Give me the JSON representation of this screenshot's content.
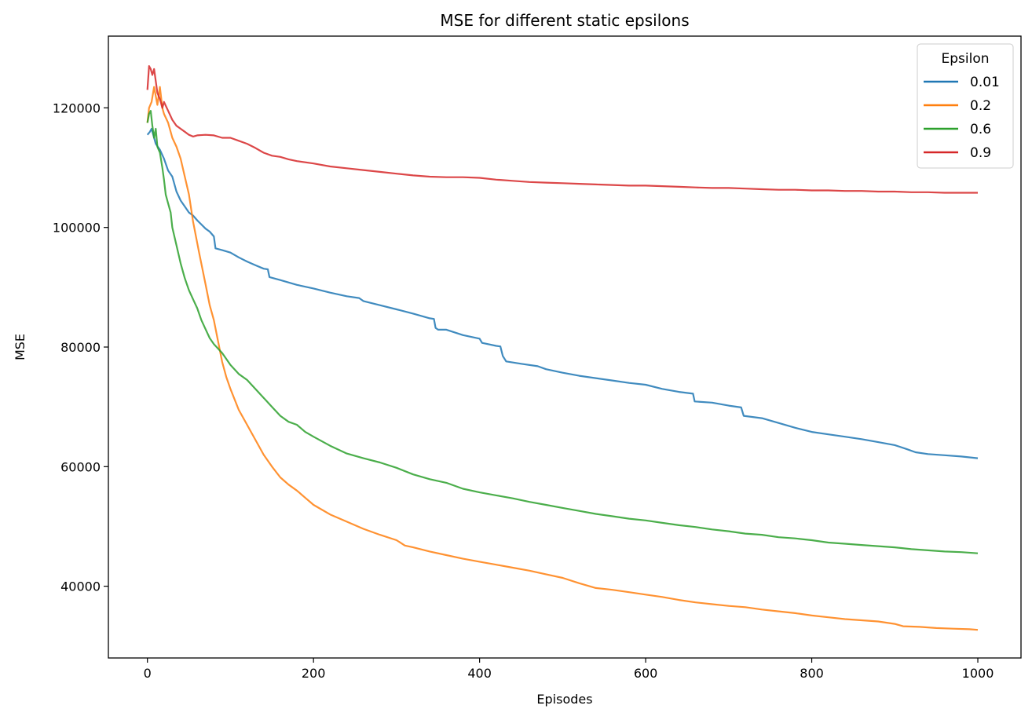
{
  "chart_data": {
    "type": "line",
    "title": "MSE for different static epsilons",
    "xlabel": "Episodes",
    "ylabel": "MSE",
    "xlim": [
      -47,
      1052
    ],
    "ylim": [
      28000,
      132000
    ],
    "xticks": [
      0,
      200,
      400,
      600,
      800,
      1000
    ],
    "yticks": [
      40000,
      60000,
      80000,
      100000,
      120000
    ],
    "grid": false,
    "legend": {
      "title": "Epsilon",
      "placement": "top-right"
    },
    "series": [
      {
        "name": "0.01",
        "color": "#1f77b4",
        "points": [
          [
            0,
            115500
          ],
          [
            3,
            116000
          ],
          [
            5,
            116500
          ],
          [
            8,
            115000
          ],
          [
            10,
            114000
          ],
          [
            15,
            113000
          ],
          [
            20,
            111500
          ],
          [
            25,
            109500
          ],
          [
            30,
            108500
          ],
          [
            35,
            106000
          ],
          [
            40,
            104500
          ],
          [
            45,
            103500
          ],
          [
            50,
            102500
          ],
          [
            55,
            102000
          ],
          [
            60,
            101200
          ],
          [
            65,
            100500
          ],
          [
            70,
            99800
          ],
          [
            75,
            99300
          ],
          [
            80,
            98500
          ],
          [
            82,
            96500
          ],
          [
            90,
            96200
          ],
          [
            100,
            95800
          ],
          [
            110,
            95000
          ],
          [
            120,
            94300
          ],
          [
            130,
            93700
          ],
          [
            140,
            93100
          ],
          [
            145,
            93000
          ],
          [
            147,
            91700
          ],
          [
            160,
            91200
          ],
          [
            180,
            90400
          ],
          [
            200,
            89800
          ],
          [
            220,
            89100
          ],
          [
            240,
            88500
          ],
          [
            255,
            88200
          ],
          [
            260,
            87700
          ],
          [
            280,
            87000
          ],
          [
            300,
            86300
          ],
          [
            320,
            85600
          ],
          [
            340,
            84800
          ],
          [
            345,
            84700
          ],
          [
            347,
            83200
          ],
          [
            350,
            82900
          ],
          [
            360,
            82900
          ],
          [
            380,
            82000
          ],
          [
            400,
            81400
          ],
          [
            403,
            80700
          ],
          [
            420,
            80200
          ],
          [
            425,
            80100
          ],
          [
            428,
            78500
          ],
          [
            432,
            77600
          ],
          [
            450,
            77200
          ],
          [
            470,
            76800
          ],
          [
            480,
            76300
          ],
          [
            500,
            75700
          ],
          [
            520,
            75200
          ],
          [
            540,
            74800
          ],
          [
            560,
            74400
          ],
          [
            580,
            74000
          ],
          [
            600,
            73700
          ],
          [
            620,
            73000
          ],
          [
            640,
            72500
          ],
          [
            657,
            72200
          ],
          [
            659,
            70900
          ],
          [
            680,
            70700
          ],
          [
            700,
            70200
          ],
          [
            715,
            69900
          ],
          [
            718,
            68500
          ],
          [
            740,
            68100
          ],
          [
            760,
            67300
          ],
          [
            780,
            66500
          ],
          [
            800,
            65800
          ],
          [
            820,
            65400
          ],
          [
            840,
            65000
          ],
          [
            860,
            64600
          ],
          [
            880,
            64100
          ],
          [
            900,
            63600
          ],
          [
            915,
            62900
          ],
          [
            925,
            62400
          ],
          [
            940,
            62100
          ],
          [
            960,
            61900
          ],
          [
            980,
            61700
          ],
          [
            1000,
            61400
          ]
        ]
      },
      {
        "name": "0.2",
        "color": "#ff7f0e",
        "points": [
          [
            0,
            117500
          ],
          [
            2,
            120000
          ],
          [
            5,
            121000
          ],
          [
            8,
            123500
          ],
          [
            10,
            122000
          ],
          [
            12,
            120500
          ],
          [
            15,
            123500
          ],
          [
            18,
            120000
          ],
          [
            20,
            119000
          ],
          [
            25,
            117500
          ],
          [
            30,
            115000
          ],
          [
            35,
            113500
          ],
          [
            40,
            111500
          ],
          [
            45,
            108500
          ],
          [
            50,
            105500
          ],
          [
            55,
            101000
          ],
          [
            62,
            96000
          ],
          [
            70,
            90500
          ],
          [
            75,
            87000
          ],
          [
            80,
            84500
          ],
          [
            85,
            81000
          ],
          [
            90,
            77500
          ],
          [
            95,
            75000
          ],
          [
            100,
            73000
          ],
          [
            110,
            69500
          ],
          [
            120,
            67000
          ],
          [
            130,
            64500
          ],
          [
            140,
            62000
          ],
          [
            150,
            60000
          ],
          [
            160,
            58200
          ],
          [
            170,
            57000
          ],
          [
            180,
            56000
          ],
          [
            190,
            54800
          ],
          [
            200,
            53600
          ],
          [
            220,
            52000
          ],
          [
            240,
            50800
          ],
          [
            260,
            49600
          ],
          [
            280,
            48600
          ],
          [
            300,
            47700
          ],
          [
            310,
            46800
          ],
          [
            320,
            46500
          ],
          [
            340,
            45800
          ],
          [
            360,
            45200
          ],
          [
            380,
            44600
          ],
          [
            400,
            44100
          ],
          [
            420,
            43600
          ],
          [
            440,
            43100
          ],
          [
            460,
            42600
          ],
          [
            480,
            42000
          ],
          [
            500,
            41400
          ],
          [
            520,
            40500
          ],
          [
            540,
            39700
          ],
          [
            560,
            39400
          ],
          [
            580,
            39000
          ],
          [
            600,
            38600
          ],
          [
            620,
            38200
          ],
          [
            640,
            37700
          ],
          [
            660,
            37300
          ],
          [
            680,
            37000
          ],
          [
            700,
            36700
          ],
          [
            720,
            36500
          ],
          [
            740,
            36100
          ],
          [
            760,
            35800
          ],
          [
            780,
            35500
          ],
          [
            800,
            35100
          ],
          [
            820,
            34800
          ],
          [
            840,
            34500
          ],
          [
            860,
            34300
          ],
          [
            880,
            34100
          ],
          [
            900,
            33700
          ],
          [
            910,
            33300
          ],
          [
            930,
            33200
          ],
          [
            950,
            33000
          ],
          [
            970,
            32900
          ],
          [
            990,
            32800
          ],
          [
            1000,
            32700
          ]
        ]
      },
      {
        "name": "0.6",
        "color": "#2ca02c",
        "points": [
          [
            0,
            117500
          ],
          [
            2,
            119000
          ],
          [
            4,
            119500
          ],
          [
            6,
            117000
          ],
          [
            8,
            115000
          ],
          [
            10,
            116500
          ],
          [
            12,
            113500
          ],
          [
            15,
            112500
          ],
          [
            18,
            110000
          ],
          [
            20,
            108000
          ],
          [
            22,
            105500
          ],
          [
            25,
            104000
          ],
          [
            28,
            102500
          ],
          [
            30,
            100000
          ],
          [
            35,
            97000
          ],
          [
            40,
            94000
          ],
          [
            45,
            91500
          ],
          [
            50,
            89500
          ],
          [
            55,
            88000
          ],
          [
            60,
            86500
          ],
          [
            65,
            84500
          ],
          [
            70,
            83000
          ],
          [
            75,
            81500
          ],
          [
            80,
            80500
          ],
          [
            90,
            79000
          ],
          [
            100,
            77000
          ],
          [
            110,
            75500
          ],
          [
            120,
            74500
          ],
          [
            130,
            73000
          ],
          [
            140,
            71500
          ],
          [
            150,
            70000
          ],
          [
            160,
            68500
          ],
          [
            170,
            67500
          ],
          [
            180,
            67000
          ],
          [
            190,
            65800
          ],
          [
            200,
            65000
          ],
          [
            220,
            63500
          ],
          [
            240,
            62200
          ],
          [
            260,
            61400
          ],
          [
            280,
            60700
          ],
          [
            300,
            59800
          ],
          [
            320,
            58700
          ],
          [
            340,
            57900
          ],
          [
            360,
            57300
          ],
          [
            380,
            56300
          ],
          [
            400,
            55700
          ],
          [
            420,
            55200
          ],
          [
            440,
            54700
          ],
          [
            460,
            54100
          ],
          [
            480,
            53600
          ],
          [
            500,
            53100
          ],
          [
            520,
            52600
          ],
          [
            540,
            52100
          ],
          [
            560,
            51700
          ],
          [
            580,
            51300
          ],
          [
            600,
            51000
          ],
          [
            620,
            50600
          ],
          [
            640,
            50200
          ],
          [
            660,
            49900
          ],
          [
            680,
            49500
          ],
          [
            700,
            49200
          ],
          [
            720,
            48800
          ],
          [
            740,
            48600
          ],
          [
            760,
            48200
          ],
          [
            780,
            48000
          ],
          [
            800,
            47700
          ],
          [
            820,
            47300
          ],
          [
            840,
            47100
          ],
          [
            860,
            46900
          ],
          [
            880,
            46700
          ],
          [
            900,
            46500
          ],
          [
            920,
            46200
          ],
          [
            940,
            46000
          ],
          [
            960,
            45800
          ],
          [
            980,
            45700
          ],
          [
            1000,
            45500
          ]
        ]
      },
      {
        "name": "0.9",
        "color": "#d62728",
        "points": [
          [
            0,
            123000
          ],
          [
            2,
            127000
          ],
          [
            4,
            126500
          ],
          [
            6,
            125500
          ],
          [
            8,
            126500
          ],
          [
            10,
            124500
          ],
          [
            12,
            122500
          ],
          [
            15,
            121500
          ],
          [
            18,
            120000
          ],
          [
            20,
            121000
          ],
          [
            25,
            119500
          ],
          [
            30,
            118000
          ],
          [
            35,
            117000
          ],
          [
            40,
            116500
          ],
          [
            45,
            116000
          ],
          [
            50,
            115500
          ],
          [
            55,
            115200
          ],
          [
            60,
            115400
          ],
          [
            70,
            115500
          ],
          [
            80,
            115400
          ],
          [
            90,
            115000
          ],
          [
            100,
            115000
          ],
          [
            110,
            114500
          ],
          [
            120,
            114000
          ],
          [
            130,
            113300
          ],
          [
            140,
            112500
          ],
          [
            150,
            112000
          ],
          [
            160,
            111800
          ],
          [
            170,
            111400
          ],
          [
            180,
            111100
          ],
          [
            200,
            110700
          ],
          [
            220,
            110200
          ],
          [
            240,
            109900
          ],
          [
            260,
            109600
          ],
          [
            280,
            109300
          ],
          [
            300,
            109000
          ],
          [
            320,
            108700
          ],
          [
            340,
            108500
          ],
          [
            360,
            108400
          ],
          [
            380,
            108400
          ],
          [
            400,
            108300
          ],
          [
            420,
            108000
          ],
          [
            440,
            107800
          ],
          [
            460,
            107600
          ],
          [
            480,
            107500
          ],
          [
            500,
            107400
          ],
          [
            520,
            107300
          ],
          [
            540,
            107200
          ],
          [
            560,
            107100
          ],
          [
            580,
            107000
          ],
          [
            600,
            107000
          ],
          [
            620,
            106900
          ],
          [
            640,
            106800
          ],
          [
            660,
            106700
          ],
          [
            680,
            106600
          ],
          [
            700,
            106600
          ],
          [
            720,
            106500
          ],
          [
            740,
            106400
          ],
          [
            760,
            106300
          ],
          [
            780,
            106300
          ],
          [
            800,
            106200
          ],
          [
            820,
            106200
          ],
          [
            840,
            106100
          ],
          [
            860,
            106100
          ],
          [
            880,
            106000
          ],
          [
            900,
            106000
          ],
          [
            920,
            105900
          ],
          [
            940,
            105900
          ],
          [
            960,
            105800
          ],
          [
            980,
            105800
          ],
          [
            1000,
            105800
          ]
        ]
      }
    ]
  }
}
